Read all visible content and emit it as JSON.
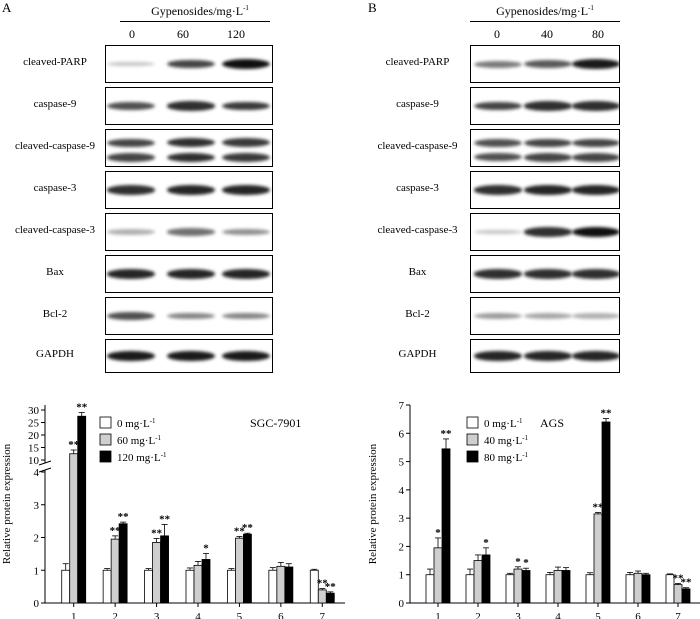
{
  "panels": [
    {
      "letter": "A",
      "header": "Gypenosides/mg·L",
      "header_sup": "-1",
      "doses": [
        "0",
        "60",
        "120"
      ],
      "proteins": [
        "cleaved-PARP",
        "caspase-9",
        "cleaved-caspase-9",
        "caspase-3",
        "cleaved-caspase-3",
        "Bax",
        "Bcl-2",
        "GAPDH"
      ],
      "chart_data": {
        "type": "bar",
        "title": "SGC-7901",
        "ylabel": "Relative protein expression",
        "categories": [
          "1",
          "2",
          "3",
          "4",
          "5",
          "6",
          "7"
        ],
        "ylim": [
          0,
          30
        ],
        "axis_break": [
          4,
          10
        ],
        "yticks": [
          "0",
          "1",
          "2",
          "3",
          "4",
          "10",
          "15",
          "20",
          "25",
          "30"
        ],
        "series": [
          {
            "name": "0 mg·L",
            "name_sup": "-1",
            "color": "#ffffff",
            "values": [
              1.0,
              1.0,
              1.0,
              1.0,
              1.0,
              1.0,
              1.0
            ],
            "errors": [
              0.2,
              0.05,
              0.05,
              0.07,
              0.05,
              0.08,
              0.03
            ]
          },
          {
            "name": "60 mg·L",
            "name_sup": "-1",
            "color": "#cfcfcf",
            "values": [
              12.5,
              1.95,
              1.85,
              1.15,
              1.98,
              1.12,
              0.4
            ],
            "errors": [
              1.5,
              0.1,
              0.12,
              0.12,
              0.05,
              0.12,
              0.04
            ]
          },
          {
            "name": "120 mg·L",
            "name_sup": "-1",
            "color": "#000000",
            "values": [
              27.5,
              2.42,
              2.05,
              1.33,
              2.1,
              1.1,
              0.3
            ],
            "errors": [
              1.5,
              0.05,
              0.35,
              0.18,
              0.03,
              0.1,
              0.04
            ]
          }
        ],
        "annotations": [
          {
            "category": "1",
            "series": 1,
            "text": "**"
          },
          {
            "category": "1",
            "series": 2,
            "text": "**"
          },
          {
            "category": "2",
            "series": 1,
            "text": "**"
          },
          {
            "category": "2",
            "series": 2,
            "text": "**"
          },
          {
            "category": "3",
            "series": 1,
            "text": "**"
          },
          {
            "category": "3",
            "series": 2,
            "text": "**"
          },
          {
            "category": "4",
            "series": 2,
            "text": "*"
          },
          {
            "category": "5",
            "series": 1,
            "text": "**"
          },
          {
            "category": "5",
            "series": 2,
            "text": "**"
          },
          {
            "category": "7",
            "series": 1,
            "text": "**"
          },
          {
            "category": "7",
            "series": 2,
            "text": "**"
          }
        ],
        "legend": "top-left"
      }
    },
    {
      "letter": "B",
      "header": "Gypenosides/mg·L",
      "header_sup": "-1",
      "doses": [
        "0",
        "40",
        "80"
      ],
      "proteins": [
        "cleaved-PARP",
        "caspase-9",
        "cleaved-caspase-9",
        "caspase-3",
        "cleaved-caspase-3",
        "Bax",
        "Bcl-2",
        "GAPDH"
      ],
      "chart_data": {
        "type": "bar",
        "title": "AGS",
        "ylabel": "Relative protein expression",
        "categories": [
          "1",
          "2",
          "3",
          "4",
          "5",
          "6",
          "7"
        ],
        "ylim": [
          0,
          7
        ],
        "yticks": [
          "0",
          "1",
          "2",
          "3",
          "4",
          "5",
          "6",
          "7"
        ],
        "series": [
          {
            "name": "0 mg·L",
            "name_sup": "-1",
            "color": "#ffffff",
            "values": [
              1.0,
              1.0,
              1.0,
              1.0,
              1.0,
              1.0,
              1.0
            ],
            "errors": [
              0.2,
              0.2,
              0.05,
              0.08,
              0.07,
              0.08,
              0.03
            ]
          },
          {
            "name": "40 mg·L",
            "name_sup": "-1",
            "color": "#cfcfcf",
            "values": [
              1.95,
              1.5,
              1.2,
              1.15,
              3.15,
              1.05,
              0.65
            ],
            "errors": [
              0.35,
              0.2,
              0.08,
              0.12,
              0.05,
              0.08,
              0.04
            ]
          },
          {
            "name": "80 mg·L",
            "name_sup": "-1",
            "color": "#000000",
            "values": [
              5.45,
              1.7,
              1.15,
              1.15,
              6.4,
              1.0,
              0.5
            ],
            "errors": [
              0.35,
              0.25,
              0.08,
              0.1,
              0.12,
              0.05,
              0.04
            ]
          }
        ],
        "annotations": [
          {
            "category": "1",
            "series": 1,
            "text": "*"
          },
          {
            "category": "1",
            "series": 2,
            "text": "**"
          },
          {
            "category": "2",
            "series": 2,
            "text": "*"
          },
          {
            "category": "3",
            "series": 1,
            "text": "*"
          },
          {
            "category": "3",
            "series": 2,
            "text": "*"
          },
          {
            "category": "5",
            "series": 1,
            "text": "**"
          },
          {
            "category": "5",
            "series": 2,
            "text": "**"
          },
          {
            "category": "7",
            "series": 1,
            "text": "**"
          },
          {
            "category": "7",
            "series": 2,
            "text": "**"
          }
        ],
        "legend": "top-left"
      }
    }
  ],
  "band_intensity": {
    "A": [
      [
        0.15,
        0.75,
        1.0
      ],
      [
        0.7,
        0.85,
        0.8
      ],
      [
        0.75,
        0.85,
        0.8
      ],
      [
        0.85,
        0.9,
        0.9
      ],
      [
        0.25,
        0.55,
        0.4
      ],
      [
        0.9,
        0.9,
        0.9
      ],
      [
        0.7,
        0.45,
        0.45
      ],
      [
        0.95,
        0.95,
        0.95
      ]
    ],
    "B": [
      [
        0.5,
        0.65,
        0.95
      ],
      [
        0.75,
        0.85,
        0.85
      ],
      [
        0.7,
        0.75,
        0.75
      ],
      [
        0.85,
        0.9,
        0.9
      ],
      [
        0.15,
        0.85,
        1.0
      ],
      [
        0.85,
        0.85,
        0.85
      ],
      [
        0.35,
        0.3,
        0.25
      ],
      [
        0.9,
        0.9,
        0.9
      ]
    ]
  },
  "colors": {
    "axis": "#000000",
    "band": "#111111"
  }
}
